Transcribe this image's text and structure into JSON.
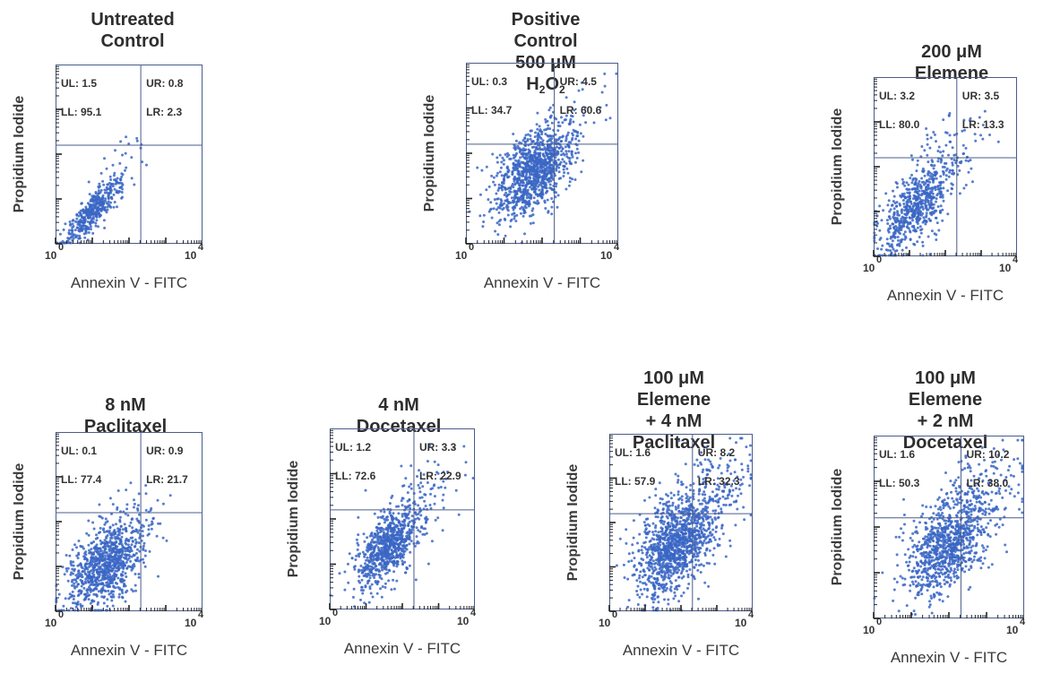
{
  "chart_data": [
    {
      "type": "scatter",
      "title_lines": [
        "Untreated",
        "Control"
      ],
      "xlabel": "Annexin V - FITC",
      "ylabel": "Propidium Iodide",
      "x_ticks": {
        "min_base": "10",
        "min_exp": "0",
        "max_base": "10",
        "max_exp": "4"
      },
      "xscale": "log",
      "yscale": "log",
      "xlim": [
        1,
        10000
      ],
      "ylim": [
        1,
        10000
      ],
      "quadrants": {
        "UL": {
          "label": "UL:",
          "value": "1.5"
        },
        "UR": {
          "label": "UR:",
          "value": "0.8"
        },
        "LL": {
          "label": "LL:",
          "value": "95.1"
        },
        "LR": {
          "label": "LR:",
          "value": "2.3"
        }
      },
      "cluster": {
        "n": 430,
        "cx": 10,
        "cy": 5,
        "spread": 0.38,
        "corr": 0.85,
        "tail": 0.06
      }
    },
    {
      "type": "scatter",
      "title_lines": [
        "Positive Control",
        "500 μM H2O2"
      ],
      "xlabel": "Annexin V - FITC",
      "ylabel": "Propidium Iodide",
      "x_ticks": {
        "min_base": "10",
        "min_exp": "0",
        "max_base": "10",
        "max_exp": "4"
      },
      "xscale": "log",
      "yscale": "log",
      "xlim": [
        1,
        10000
      ],
      "ylim": [
        1,
        10000
      ],
      "quadrants": {
        "UL": {
          "label": "UL:",
          "value": "0.3"
        },
        "UR": {
          "label": "UR:",
          "value": "4.5"
        },
        "LL": {
          "label": "LL:",
          "value": "34.7"
        },
        "LR": {
          "label": "LR:",
          "value": "60.6"
        }
      },
      "cluster": {
        "n": 1100,
        "cx": 60,
        "cy": 40,
        "spread": 0.5,
        "corr": 0.55,
        "tail": 0.05
      }
    },
    {
      "type": "scatter",
      "title_lines": [
        "200 μM  Elemene"
      ],
      "xlabel": "Annexin V - FITC",
      "ylabel": "Propidium Iodide",
      "x_ticks": {
        "min_base": "10",
        "min_exp": "0",
        "max_base": "10",
        "max_exp": "4"
      },
      "xscale": "log",
      "yscale": "log",
      "xlim": [
        1,
        10000
      ],
      "ylim": [
        1,
        10000
      ],
      "quadrants": {
        "UL": {
          "label": "UL:",
          "value": "3.2"
        },
        "UR": {
          "label": "UR:",
          "value": "3.5"
        },
        "LL": {
          "label": "LL:",
          "value": "80.0"
        },
        "LR": {
          "label": "LR:",
          "value": "13.3"
        }
      },
      "cluster": {
        "n": 700,
        "cx": 15,
        "cy": 12,
        "spread": 0.5,
        "corr": 0.6,
        "tail": 0.15
      }
    },
    {
      "type": "scatter",
      "title_lines": [
        "8 nM Paclitaxel"
      ],
      "xlabel": "Annexin V - FITC",
      "ylabel": "Propidium Iodide",
      "x_ticks": {
        "min_base": "10",
        "min_exp": "0",
        "max_base": "10",
        "max_exp": "4"
      },
      "xscale": "log",
      "yscale": "log",
      "xlim": [
        1,
        10000
      ],
      "ylim": [
        1,
        10000
      ],
      "quadrants": {
        "UL": {
          "label": "UL:",
          "value": "0.1"
        },
        "UR": {
          "label": "UR:",
          "value": "0.9"
        },
        "LL": {
          "label": "LL:",
          "value": "77.4"
        },
        "LR": {
          "label": "LR:",
          "value": "21.7"
        }
      },
      "cluster": {
        "n": 950,
        "cx": 25,
        "cy": 12,
        "spread": 0.5,
        "corr": 0.5,
        "tail": 0.03
      }
    },
    {
      "type": "scatter",
      "title_lines": [
        "4 nM Docetaxel"
      ],
      "xlabel": "Annexin V - FITC",
      "ylabel": "Propidium Iodide",
      "x_ticks": {
        "min_base": "10",
        "min_exp": "0",
        "max_base": "10",
        "max_exp": "4"
      },
      "xscale": "log",
      "yscale": "log",
      "xlim": [
        1,
        10000
      ],
      "ylim": [
        1,
        10000
      ],
      "quadrants": {
        "UL": {
          "label": "UL:",
          "value": "1.2"
        },
        "UR": {
          "label": "UR:",
          "value": "3.3"
        },
        "LL": {
          "label": "LL:",
          "value": "72.6"
        },
        "LR": {
          "label": "LR:",
          "value": "22.9"
        }
      },
      "cluster": {
        "n": 850,
        "cx": 40,
        "cy": 25,
        "spread": 0.45,
        "corr": 0.6,
        "tail": 0.1
      }
    },
    {
      "type": "scatter",
      "title_lines": [
        "100 μM  Elemene",
        "+ 4 nM Paclitaxel"
      ],
      "xlabel": "Annexin V - FITC",
      "ylabel": "Propidium Iodide",
      "x_ticks": {
        "min_base": "10",
        "min_exp": "0",
        "max_base": "10",
        "max_exp": "4"
      },
      "xscale": "log",
      "yscale": "log",
      "xlim": [
        1,
        10000
      ],
      "ylim": [
        1,
        10000
      ],
      "quadrants": {
        "UL": {
          "label": "UL:",
          "value": "1.6"
        },
        "UR": {
          "label": "UR:",
          "value": "8.2"
        },
        "LL": {
          "label": "LL:",
          "value": "57.9"
        },
        "LR": {
          "label": "LR:",
          "value": "32.3"
        }
      },
      "cluster": {
        "n": 1300,
        "cx": 70,
        "cy": 30,
        "spread": 0.55,
        "corr": 0.45,
        "tail": 0.18
      }
    },
    {
      "type": "scatter",
      "title_lines": [
        "100 μM  Elemene",
        "+ 2 nM Docetaxel"
      ],
      "xlabel": "Annexin V - FITC",
      "ylabel": "Propidium Iodide",
      "x_ticks": {
        "min_base": "10",
        "min_exp": "0",
        "max_base": "10",
        "max_exp": "4"
      },
      "xscale": "log",
      "yscale": "log",
      "xlim": [
        1,
        10000
      ],
      "ylim": [
        1,
        10000
      ],
      "quadrants": {
        "UL": {
          "label": "UL:",
          "value": "1.6"
        },
        "UR": {
          "label": "UR:",
          "value": "10.2"
        },
        "LL": {
          "label": "LL:",
          "value": "50.3"
        },
        "LR": {
          "label": "LR:",
          "value": "38.0"
        }
      },
      "cluster": {
        "n": 1050,
        "cx": 90,
        "cy": 40,
        "spread": 0.55,
        "corr": 0.45,
        "tail": 0.15
      }
    }
  ],
  "colors": {
    "dots": "#3a66c4",
    "axis": "#4a5c8c",
    "text": "#2e2e2e"
  }
}
